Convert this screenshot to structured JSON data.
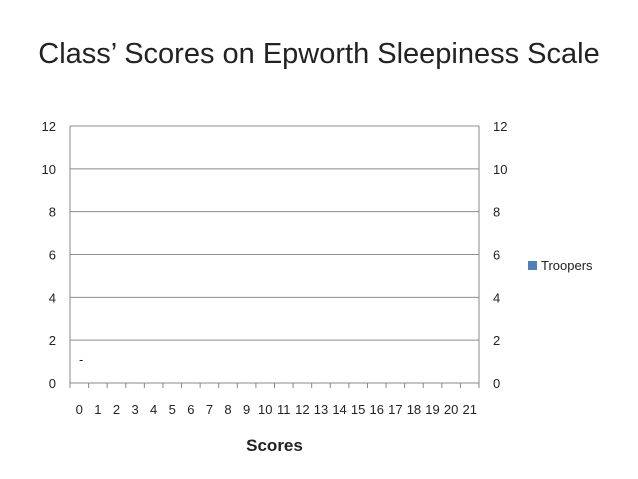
{
  "chart_data": {
    "type": "bar",
    "title": "Class’ Scores on Epworth Sleepiness Scale",
    "xlabel": "Scores",
    "ylabel": "",
    "categories": [
      "0",
      "1",
      "2",
      "3",
      "4",
      "5",
      "6",
      "7",
      "8",
      "9",
      "10",
      "11",
      "12",
      "13",
      "14",
      "15",
      "16",
      "17",
      "18",
      "19",
      "20",
      "21"
    ],
    "series": [
      {
        "name": "Troopers",
        "color": "#4F81BD",
        "values": [
          0,
          0,
          0,
          0,
          0,
          0,
          0,
          0,
          0,
          0,
          0,
          0,
          0,
          0,
          0,
          0,
          0,
          0,
          0,
          0,
          0,
          0
        ]
      }
    ],
    "ylim": [
      0,
      12
    ],
    "yticks": [
      "0",
      "2",
      "4",
      "6",
      "8",
      "10",
      "12"
    ],
    "secondary_yticks": [
      "0",
      "2",
      "4",
      "6",
      "8",
      "10",
      "12"
    ],
    "grid": true,
    "legend_position": "right",
    "annotation": "-"
  }
}
